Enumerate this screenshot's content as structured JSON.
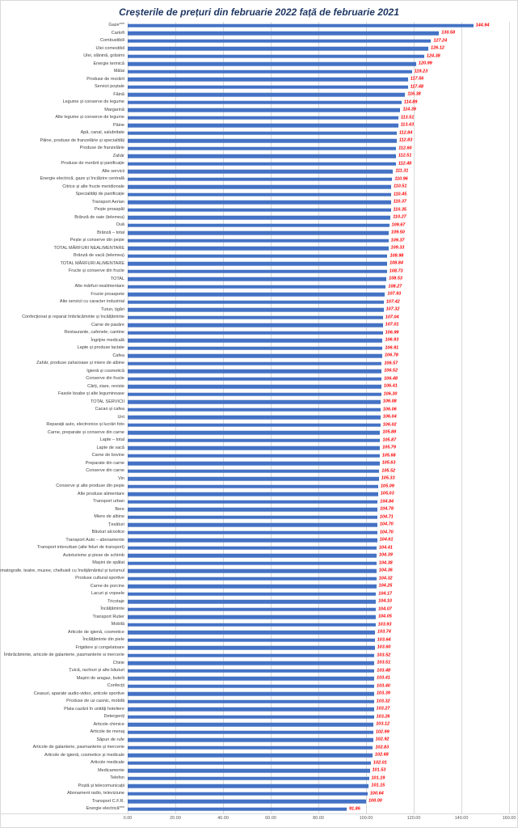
{
  "title": "Creșterile de prețuri din februarie 2022 față de februarie 2021",
  "chart_data": {
    "type": "bar",
    "orientation": "horizontal",
    "title": "Creșterile de prețuri din februarie 2022 față de februarie 2021",
    "xlabel": "",
    "ylabel": "",
    "xlim": [
      0,
      160
    ],
    "grid": true,
    "bar_color": "#4472C4",
    "value_label_color": "#FF0000",
    "title_color": "#1F3864",
    "gridline_color": "#D9D9D9",
    "x_ticks": [
      "0.00",
      "20.00",
      "40.00",
      "60.00",
      "80.00",
      "100.00",
      "120.00",
      "140.00",
      "160.00"
    ],
    "categories": [
      "Gaze***",
      "Cartofi",
      "Combustibili",
      "Ulei comestibil",
      "Ulei, slănină, grăsimi",
      "Energie termică",
      "Mălai",
      "Produse de morărit",
      "Servicii poștale",
      "Făină",
      "Legume și conserve de legume",
      "Margarină",
      "Alte legume și conserve de legume",
      "Pâine",
      "Apă, canal, salubritate",
      "Pâine, produse de franzelărie și specialități",
      "Produse de franzelărie",
      "Zahăr",
      "Produse de morărit și panificație",
      "Alte servicii",
      "Energie electrică, gaze și încălzire centrală",
      "Citrice și alte fructe meridionale",
      "Specialități de panificație",
      "Transport Aerian",
      "Pește proaspăt",
      "Brânză de oaie (telemea)",
      "Ouă",
      "Brânză – total",
      "Pește și conserve din pește",
      "TOTAL MĂRFURI NEALIMENTARE",
      "Brânză de vacă (telemea)",
      "TOTAL MĂRFURI ALIMENTARE",
      "Fructe și conserve din fructe",
      "TOTAL",
      "Alte mărfuri nealimentare",
      "Fructe proaspete",
      "Alte servicii cu caracter industrial",
      "Tutun, țigări",
      "Confecționat și reparat îmbrăcăminte și încălțăminte",
      "Carne de pasăre",
      "Restaurante, cafenele, cantine",
      "Îngrijire medicală",
      "Lapte și produse lactate",
      "Cafea",
      "Zahăr, produse zaharoase și miere de albine",
      "Igienă și cosmetică",
      "Conserve din fructe",
      "Cărți, ziare, reviste",
      "Fasole boabe și alte leguminoase",
      "TOTAL SERVICII",
      "Cacao și cafea",
      "Unt",
      "Reparații auto, electronice și lucrări foto",
      "Carne, preparate și conserve din carne",
      "Lapte – total",
      "Lapte de vacă",
      "Carne de bovine",
      "Preparate din carne",
      "Conserve din carne",
      "Vin",
      "Conserve și alte produse din pește",
      "Alte produse alimentare",
      "Transport urban",
      "Bere",
      "Miere de albine",
      "Țesături",
      "Băuturi alcoolice",
      "Transport Auto – abonamente",
      "Transport interurban (alte feluri de transport)",
      "Autoturisme și piese de schimb",
      "Mașini de spălat",
      "Cinematografe, teatre, muzee, cheltuieli cu învățământul și turismul",
      "Produse cultural-sportive",
      "Carne de porcine",
      "Lacuri și vopsele",
      "Tricotaje",
      "Încălțăminte",
      "Transport Rutier",
      "Mobilă",
      "Articole de igienă, cosmetice",
      "Încălțăminte din piele",
      "Frigidere și congelatoare",
      "Îmbrăcăminte, articole de galanterie, pasmanterie si mercerie",
      "Chirie",
      "Țuică, rachiuri și alte băuturi",
      "Mașini de aragaz, butelii",
      "Confecții",
      "Ceasuri, aparate audio-video, articole sportive",
      "Produse de uz casnic, mobilă",
      "Plata cazării în unități hoteliere",
      "Detergenți",
      "Articole chimice",
      "Articole de menaj",
      "Săpun de rufe",
      "Articole de galanterie, pasmanterie și mercerie",
      "Articole de igienă, cosmetice și medicale",
      "Articole medicale",
      "Medicamente",
      "Telefon",
      "Poștă și telecomunicații",
      "Abonament radio, televiziune",
      "Transport C.F.R.",
      "Energie electrică***"
    ],
    "values": [
      144.94,
      130.58,
      127.24,
      126.12,
      124.38,
      120.99,
      119.23,
      117.56,
      117.48,
      116.38,
      114.89,
      114.39,
      113.51,
      113.43,
      112.84,
      112.83,
      112.6,
      112.51,
      112.48,
      111.31,
      110.96,
      110.51,
      110.45,
      110.37,
      110.35,
      110.27,
      109.67,
      109.5,
      109.37,
      109.33,
      108.98,
      108.84,
      108.73,
      108.53,
      108.27,
      107.93,
      107.42,
      107.32,
      107.04,
      107.01,
      106.99,
      106.93,
      106.91,
      106.78,
      106.57,
      106.52,
      106.48,
      106.41,
      106.3,
      106.08,
      106.06,
      106.04,
      106.02,
      105.88,
      105.87,
      105.79,
      105.68,
      105.63,
      105.52,
      105.33,
      105.09,
      105.03,
      104.84,
      104.78,
      104.71,
      104.7,
      104.7,
      104.61,
      104.41,
      104.39,
      104.38,
      104.36,
      104.32,
      104.25,
      104.17,
      104.1,
      104.07,
      104.05,
      103.93,
      103.74,
      103.64,
      103.6,
      103.52,
      103.51,
      103.48,
      103.41,
      103.4,
      103.39,
      103.32,
      103.27,
      103.26,
      103.12,
      102.99,
      102.92,
      102.83,
      102.68,
      102.01,
      101.53,
      101.19,
      101.15,
      100.64,
      100.0,
      91.86
    ],
    "value_labels": [
      "144.94",
      "130.58",
      "127.24",
      "126.12",
      "124.38",
      "120.99",
      "119.23",
      "117.56",
      "117.48",
      "116.38",
      "114.89",
      "114.39",
      "113.51",
      "113.43",
      "112.84",
      "112.83",
      "112.60",
      "112.51",
      "112.48",
      "111.31",
      "110.96",
      "110.51",
      "110.45",
      "110.37",
      "110.35",
      "110.27",
      "109.67",
      "109.50",
      "109.37",
      "109.33",
      "108.98",
      "108.84",
      "108.73",
      "108.53",
      "108.27",
      "107.93",
      "107.42",
      "107.32",
      "107.04",
      "107.01",
      "106.99",
      "106.93",
      "106.91",
      "106.78",
      "106.57",
      "106.52",
      "106.48",
      "106.41",
      "106.30",
      "106.08",
      "106.06",
      "106.04",
      "106.02",
      "105.88",
      "105.87",
      "105.79",
      "105.68",
      "105.63",
      "105.52",
      "105.33",
      "105.09",
      "105.03",
      "104.84",
      "104.78",
      "104.71",
      "104.70",
      "104.70",
      "104.61",
      "104.41",
      "104.39",
      "104.38",
      "104.36",
      "104.32",
      "104.25",
      "104.17",
      "104.10",
      "104.07",
      "104.05",
      "103.93",
      "103.74",
      "103.64",
      "103.60",
      "103.52",
      "103.51",
      "103.48",
      "103.41",
      "103.40",
      "103.39",
      "103.32",
      "103.27",
      "103.26",
      "103.12",
      "102.99",
      "102.92",
      "102.83",
      "102.68",
      "102.01",
      "101.53",
      "101.19",
      "101.15",
      "100.64",
      "100.00",
      "91.86"
    ]
  }
}
